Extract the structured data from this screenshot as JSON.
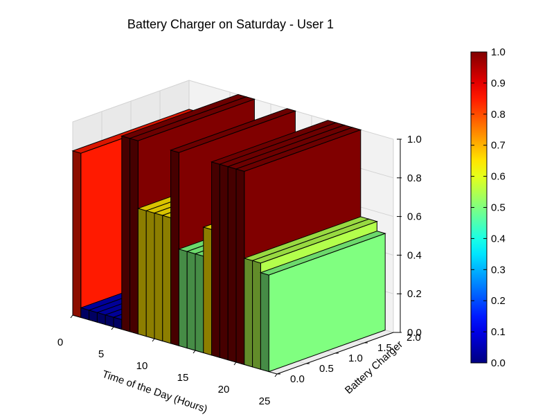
{
  "chart_data": {
    "type": "bar3d",
    "title": "Battery Charger on Saturday - User 1",
    "xlabel": "Time of the Day (Hours)",
    "ylabel": "Battery Charger",
    "zlabel": "",
    "xlim": [
      0,
      25
    ],
    "ylim": [
      0,
      2
    ],
    "zlim": [
      0,
      1
    ],
    "xticks": [
      "0",
      "5",
      "10",
      "15",
      "20",
      "25"
    ],
    "yticks": [
      "0.0",
      "0.5",
      "1.0",
      "1.5",
      "2.0"
    ],
    "zticks": [
      "0.0",
      "0.2",
      "0.4",
      "0.6",
      "0.8",
      "1.0"
    ],
    "colormap": "jet",
    "colorbar": {
      "min": 0,
      "max": 1,
      "ticks": [
        "0.0",
        "0.1",
        "0.2",
        "0.3",
        "0.4",
        "0.5",
        "0.6",
        "0.7",
        "0.8",
        "0.9",
        "1.0"
      ]
    },
    "grid": true,
    "bar_width_hours": 1,
    "bar_depth": 2,
    "hours": [
      0,
      1,
      2,
      3,
      4,
      5,
      6,
      7,
      8,
      9,
      10,
      11,
      12,
      13,
      14,
      15,
      16,
      17,
      18,
      19,
      20,
      21,
      22,
      23
    ],
    "values": [
      0.85,
      0.05,
      0.05,
      0.05,
      0.05,
      0.05,
      1.0,
      1.0,
      0.65,
      0.65,
      0.65,
      0.65,
      1.0,
      0.5,
      0.5,
      0.5,
      0.65,
      1.0,
      1.0,
      1.0,
      1.0,
      0.55,
      0.55,
      0.5
    ]
  }
}
